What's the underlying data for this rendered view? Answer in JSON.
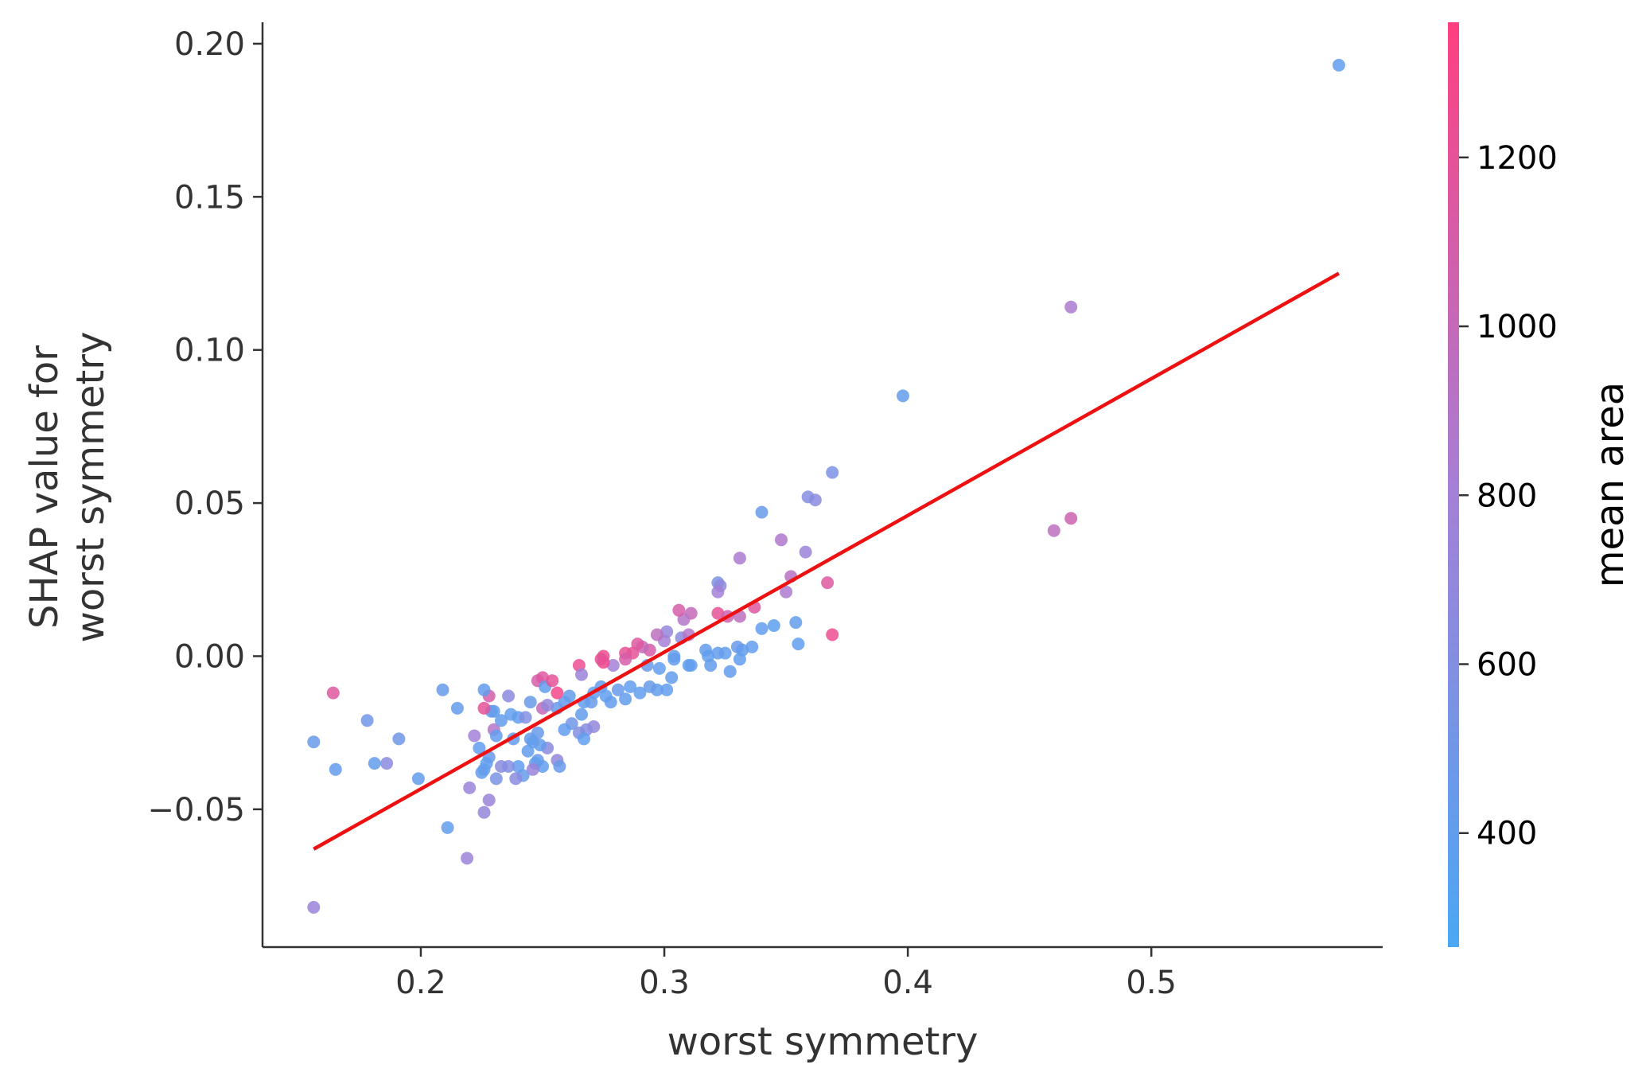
{
  "chart_data": {
    "type": "scatter",
    "title": "",
    "xlabel": "worst symmetry",
    "ylabel_lines": [
      "SHAP value for",
      "worst symmetry"
    ],
    "xlim": [
      0.135,
      0.595
    ],
    "ylim": [
      -0.095,
      0.207
    ],
    "x_ticks": [
      0.2,
      0.3,
      0.4,
      0.5
    ],
    "x_tick_labels": [
      "0.2",
      "0.3",
      "0.4",
      "0.5"
    ],
    "y_ticks": [
      0.2,
      0.15,
      0.1,
      0.05,
      0.0,
      -0.05
    ],
    "y_tick_labels": [
      "0.20",
      "0.15",
      "0.10",
      "0.05",
      "0.00",
      "−0.05"
    ],
    "grid": false,
    "colorbar": {
      "label": "mean area",
      "range": [
        265,
        1360
      ],
      "ticks": [
        400,
        600,
        800,
        1000,
        1200
      ],
      "tick_labels": [
        "400",
        "600",
        "800",
        "1000",
        "1200"
      ],
      "color_low": "#4aa8f4",
      "color_mid": "#a67fd6",
      "color_high": "#ff3f7f"
    },
    "trend_line": {
      "color": "#ee1111",
      "from": [
        0.156,
        -0.063
      ],
      "to": [
        0.577,
        0.125
      ]
    },
    "points": [
      [
        0.577,
        0.193,
        400
      ],
      [
        0.467,
        0.114,
        850
      ],
      [
        0.398,
        0.085,
        420
      ],
      [
        0.467,
        0.045,
        1050
      ],
      [
        0.46,
        0.041,
        950
      ],
      [
        0.369,
        0.06,
        560
      ],
      [
        0.362,
        0.051,
        650
      ],
      [
        0.359,
        0.052,
        620
      ],
      [
        0.34,
        0.047,
        450
      ],
      [
        0.358,
        0.034,
        750
      ],
      [
        0.348,
        0.038,
        880
      ],
      [
        0.352,
        0.026,
        930
      ],
      [
        0.35,
        0.021,
        850
      ],
      [
        0.367,
        0.024,
        1150
      ],
      [
        0.369,
        0.007,
        1250
      ],
      [
        0.354,
        0.011,
        420
      ],
      [
        0.355,
        0.004,
        400
      ],
      [
        0.345,
        0.01,
        380
      ],
      [
        0.34,
        0.009,
        400
      ],
      [
        0.331,
        0.032,
        850
      ],
      [
        0.322,
        0.024,
        550
      ],
      [
        0.323,
        0.023,
        680
      ],
      [
        0.322,
        0.021,
        800
      ],
      [
        0.322,
        0.014,
        1200
      ],
      [
        0.326,
        0.013,
        1050
      ],
      [
        0.331,
        0.013,
        950
      ],
      [
        0.337,
        0.016,
        1150
      ],
      [
        0.336,
        0.003,
        400
      ],
      [
        0.33,
        0.003,
        450
      ],
      [
        0.332,
        0.002,
        420
      ],
      [
        0.331,
        -0.001,
        400
      ],
      [
        0.327,
        -0.005,
        420
      ],
      [
        0.325,
        0.001,
        400
      ],
      [
        0.322,
        0.001,
        420
      ],
      [
        0.317,
        0.002,
        420
      ],
      [
        0.318,
        0.0,
        400
      ],
      [
        0.319,
        -0.003,
        420
      ],
      [
        0.31,
        -0.003,
        400
      ],
      [
        0.311,
        -0.003,
        400
      ],
      [
        0.311,
        0.014,
        1000
      ],
      [
        0.308,
        0.012,
        900
      ],
      [
        0.306,
        0.015,
        1100
      ],
      [
        0.307,
        0.006,
        650
      ],
      [
        0.31,
        0.007,
        900
      ],
      [
        0.301,
        0.008,
        700
      ],
      [
        0.3,
        0.005,
        800
      ],
      [
        0.297,
        0.007,
        950
      ],
      [
        0.304,
        0.0,
        400
      ],
      [
        0.304,
        -0.001,
        420
      ],
      [
        0.298,
        -0.004,
        400
      ],
      [
        0.303,
        -0.007,
        420
      ],
      [
        0.301,
        -0.011,
        400
      ],
      [
        0.293,
        -0.003,
        450
      ],
      [
        0.294,
        0.002,
        1100
      ],
      [
        0.291,
        0.003,
        1000
      ],
      [
        0.289,
        0.004,
        1150
      ],
      [
        0.287,
        0.001,
        1200
      ],
      [
        0.284,
        0.001,
        1200
      ],
      [
        0.284,
        -0.001,
        1100
      ],
      [
        0.279,
        -0.003,
        800
      ],
      [
        0.275,
        0.0,
        1250
      ],
      [
        0.275,
        -0.002,
        1300
      ],
      [
        0.274,
        -0.001,
        1200
      ],
      [
        0.265,
        -0.003,
        1250
      ],
      [
        0.266,
        -0.006,
        750
      ],
      [
        0.297,
        -0.011,
        420
      ],
      [
        0.294,
        -0.01,
        450
      ],
      [
        0.29,
        -0.012,
        400
      ],
      [
        0.286,
        -0.01,
        400
      ],
      [
        0.284,
        -0.014,
        420
      ],
      [
        0.281,
        -0.011,
        450
      ],
      [
        0.278,
        -0.015,
        420
      ],
      [
        0.276,
        -0.013,
        400
      ],
      [
        0.274,
        -0.01,
        420
      ],
      [
        0.271,
        -0.012,
        400
      ],
      [
        0.27,
        -0.015,
        450
      ],
      [
        0.267,
        -0.015,
        400
      ],
      [
        0.266,
        -0.019,
        420
      ],
      [
        0.271,
        -0.023,
        700
      ],
      [
        0.268,
        -0.024,
        650
      ],
      [
        0.265,
        -0.025,
        600
      ],
      [
        0.262,
        -0.022,
        500
      ],
      [
        0.261,
        -0.013,
        420
      ],
      [
        0.259,
        -0.015,
        420
      ],
      [
        0.256,
        -0.017,
        450
      ],
      [
        0.259,
        -0.024,
        400
      ],
      [
        0.267,
        -0.027,
        400
      ],
      [
        0.256,
        -0.034,
        700
      ],
      [
        0.257,
        -0.036,
        450
      ],
      [
        0.252,
        -0.03,
        650
      ],
      [
        0.25,
        -0.036,
        400
      ],
      [
        0.248,
        -0.034,
        450
      ],
      [
        0.249,
        -0.029,
        420
      ],
      [
        0.248,
        -0.025,
        450
      ],
      [
        0.246,
        -0.028,
        420
      ],
      [
        0.245,
        -0.027,
        420
      ],
      [
        0.247,
        -0.035,
        400
      ],
      [
        0.244,
        -0.031,
        420
      ],
      [
        0.246,
        -0.037,
        750
      ],
      [
        0.242,
        -0.039,
        450
      ],
      [
        0.24,
        -0.036,
        400
      ],
      [
        0.239,
        -0.04,
        650
      ],
      [
        0.236,
        -0.036,
        600
      ],
      [
        0.233,
        -0.036,
        650
      ],
      [
        0.231,
        -0.04,
        550
      ],
      [
        0.228,
        -0.033,
        450
      ],
      [
        0.227,
        -0.035,
        400
      ],
      [
        0.226,
        -0.037,
        400
      ],
      [
        0.225,
        -0.038,
        420
      ],
      [
        0.224,
        -0.03,
        400
      ],
      [
        0.222,
        -0.026,
        800
      ],
      [
        0.23,
        -0.024,
        900
      ],
      [
        0.231,
        -0.026,
        420
      ],
      [
        0.233,
        -0.021,
        420
      ],
      [
        0.23,
        -0.018,
        400
      ],
      [
        0.229,
        -0.018,
        420
      ],
      [
        0.226,
        -0.017,
        1200
      ],
      [
        0.228,
        -0.013,
        1100
      ],
      [
        0.226,
        -0.011,
        420
      ],
      [
        0.236,
        -0.013,
        650
      ],
      [
        0.237,
        -0.019,
        400
      ],
      [
        0.238,
        -0.027,
        420
      ],
      [
        0.24,
        -0.02,
        400
      ],
      [
        0.243,
        -0.02,
        600
      ],
      [
        0.245,
        -0.015,
        450
      ],
      [
        0.248,
        -0.008,
        1100
      ],
      [
        0.25,
        -0.007,
        1150
      ],
      [
        0.251,
        -0.01,
        420
      ],
      [
        0.254,
        -0.008,
        1200
      ],
      [
        0.256,
        -0.012,
        1300
      ],
      [
        0.25,
        -0.017,
        1000
      ],
      [
        0.252,
        -0.016,
        700
      ],
      [
        0.22,
        -0.043,
        750
      ],
      [
        0.226,
        -0.051,
        700
      ],
      [
        0.228,
        -0.047,
        750
      ],
      [
        0.219,
        -0.066,
        750
      ],
      [
        0.211,
        -0.056,
        420
      ],
      [
        0.199,
        -0.04,
        420
      ],
      [
        0.191,
        -0.027,
        500
      ],
      [
        0.186,
        -0.035,
        650
      ],
      [
        0.181,
        -0.035,
        420
      ],
      [
        0.178,
        -0.021,
        500
      ],
      [
        0.165,
        -0.037,
        420
      ],
      [
        0.164,
        -0.012,
        1150
      ],
      [
        0.156,
        -0.028,
        450
      ],
      [
        0.156,
        -0.082,
        750
      ],
      [
        0.209,
        -0.011,
        450
      ],
      [
        0.215,
        -0.017,
        420
      ]
    ]
  }
}
